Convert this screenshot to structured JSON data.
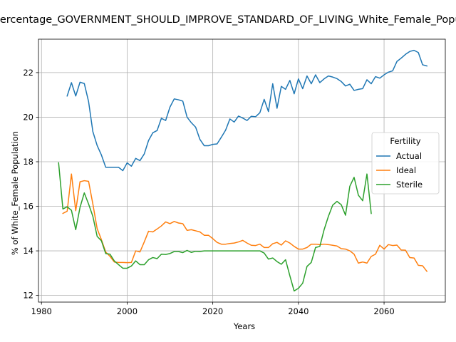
{
  "chart_data": {
    "type": "line",
    "title": "Percentage_GOVERNMENT_SHOULD_IMPROVE_STANDARD_OF_LIVING_White_Female_Population",
    "xlabel": "Years",
    "ylabel": "% of White_Female Population",
    "xlim": [
      1979.3,
      2074.3
    ],
    "ylim": [
      11.7,
      23.5
    ],
    "x_ticks": [
      1980,
      2000,
      2020,
      2040,
      2060
    ],
    "y_ticks": [
      12,
      14,
      16,
      18,
      20,
      22
    ],
    "x_tick_labels": [
      "1980",
      "2000",
      "2020",
      "2040",
      "2060"
    ],
    "y_tick_labels": [
      "12",
      "14",
      "16",
      "18",
      "20",
      "22"
    ],
    "grid": true,
    "legend": {
      "title": "Fertility",
      "placement": "center-right"
    },
    "series": [
      {
        "name": "Actual",
        "color": "#1f77b4",
        "points": [
          [
            1986,
            20.95
          ],
          [
            1987,
            21.55
          ],
          [
            1988,
            20.95
          ],
          [
            1989,
            21.57
          ],
          [
            1990,
            21.51
          ],
          [
            1991,
            20.7
          ],
          [
            1992,
            19.35
          ],
          [
            1993,
            18.73
          ],
          [
            1994,
            18.3
          ],
          [
            1995,
            17.75
          ],
          [
            1996,
            17.75
          ],
          [
            1997,
            17.75
          ],
          [
            1998,
            17.75
          ],
          [
            1999,
            17.6
          ],
          [
            2000,
            17.95
          ],
          [
            2001,
            17.8
          ],
          [
            2002,
            18.15
          ],
          [
            2003,
            18.05
          ],
          [
            2004,
            18.35
          ],
          [
            2005,
            18.95
          ],
          [
            2006,
            19.3
          ],
          [
            2007,
            19.4
          ],
          [
            2008,
            19.95
          ],
          [
            2009,
            19.85
          ],
          [
            2010,
            20.45
          ],
          [
            2011,
            20.82
          ],
          [
            2012,
            20.78
          ],
          [
            2013,
            20.72
          ],
          [
            2014,
            20.0
          ],
          [
            2015,
            19.75
          ],
          [
            2016,
            19.55
          ],
          [
            2017,
            19.0
          ],
          [
            2018,
            18.72
          ],
          [
            2019,
            18.72
          ],
          [
            2020,
            18.78
          ],
          [
            2021,
            18.8
          ],
          [
            2022,
            19.1
          ],
          [
            2023,
            19.42
          ],
          [
            2024,
            19.92
          ],
          [
            2025,
            19.78
          ],
          [
            2026,
            20.05
          ],
          [
            2027,
            19.96
          ],
          [
            2028,
            19.85
          ],
          [
            2029,
            20.04
          ],
          [
            2030,
            20.02
          ],
          [
            2031,
            20.2
          ],
          [
            2032,
            20.8
          ],
          [
            2033,
            20.25
          ],
          [
            2034,
            21.5
          ],
          [
            2035,
            20.4
          ],
          [
            2036,
            21.38
          ],
          [
            2037,
            21.25
          ],
          [
            2038,
            21.65
          ],
          [
            2039,
            21.05
          ],
          [
            2040,
            21.72
          ],
          [
            2041,
            21.28
          ],
          [
            2042,
            21.85
          ],
          [
            2043,
            21.5
          ],
          [
            2044,
            21.9
          ],
          [
            2045,
            21.55
          ],
          [
            2046,
            21.72
          ],
          [
            2047,
            21.85
          ],
          [
            2048,
            21.8
          ],
          [
            2049,
            21.73
          ],
          [
            2050,
            21.6
          ],
          [
            2051,
            21.4
          ],
          [
            2052,
            21.48
          ],
          [
            2053,
            21.2
          ],
          [
            2054,
            21.25
          ],
          [
            2055,
            21.28
          ],
          [
            2056,
            21.68
          ],
          [
            2057,
            21.5
          ],
          [
            2058,
            21.82
          ],
          [
            2059,
            21.75
          ],
          [
            2060,
            21.9
          ],
          [
            2061,
            22.02
          ],
          [
            2062,
            22.08
          ],
          [
            2063,
            22.5
          ],
          [
            2064,
            22.65
          ],
          [
            2065,
            22.82
          ],
          [
            2066,
            22.95
          ],
          [
            2067,
            23.0
          ],
          [
            2068,
            22.9
          ],
          [
            2069,
            22.35
          ],
          [
            2070,
            22.3
          ]
        ]
      },
      {
        "name": "Ideal",
        "color": "#ff7f0e",
        "points": [
          [
            1985,
            15.68
          ],
          [
            1986,
            15.78
          ],
          [
            1987,
            17.45
          ],
          [
            1988,
            15.8
          ],
          [
            1989,
            17.1
          ],
          [
            1990,
            17.15
          ],
          [
            1991,
            17.12
          ],
          [
            1992,
            16.1
          ],
          [
            1993,
            15.0
          ],
          [
            1994,
            14.5
          ],
          [
            1995,
            13.95
          ],
          [
            1996,
            13.75
          ],
          [
            1997,
            13.5
          ],
          [
            1998,
            13.48
          ],
          [
            1999,
            13.48
          ],
          [
            2000,
            13.47
          ],
          [
            2001,
            13.48
          ],
          [
            2002,
            14.0
          ],
          [
            2003,
            13.95
          ],
          [
            2004,
            14.4
          ],
          [
            2005,
            14.88
          ],
          [
            2006,
            14.85
          ],
          [
            2007,
            14.98
          ],
          [
            2008,
            15.12
          ],
          [
            2009,
            15.3
          ],
          [
            2010,
            15.22
          ],
          [
            2011,
            15.32
          ],
          [
            2012,
            15.25
          ],
          [
            2013,
            15.22
          ],
          [
            2014,
            14.92
          ],
          [
            2015,
            14.95
          ],
          [
            2016,
            14.9
          ],
          [
            2017,
            14.85
          ],
          [
            2018,
            14.7
          ],
          [
            2019,
            14.7
          ],
          [
            2020,
            14.55
          ],
          [
            2021,
            14.38
          ],
          [
            2022,
            14.3
          ],
          [
            2023,
            14.3
          ],
          [
            2024,
            14.33
          ],
          [
            2025,
            14.35
          ],
          [
            2026,
            14.4
          ],
          [
            2027,
            14.47
          ],
          [
            2028,
            14.35
          ],
          [
            2029,
            14.25
          ],
          [
            2030,
            14.24
          ],
          [
            2031,
            14.3
          ],
          [
            2032,
            14.15
          ],
          [
            2033,
            14.15
          ],
          [
            2034,
            14.32
          ],
          [
            2035,
            14.38
          ],
          [
            2036,
            14.26
          ],
          [
            2037,
            14.45
          ],
          [
            2038,
            14.35
          ],
          [
            2039,
            14.2
          ],
          [
            2040,
            14.08
          ],
          [
            2041,
            14.08
          ],
          [
            2042,
            14.15
          ],
          [
            2043,
            14.3
          ],
          [
            2044,
            14.3
          ],
          [
            2045,
            14.28
          ],
          [
            2046,
            14.3
          ],
          [
            2047,
            14.28
          ],
          [
            2048,
            14.25
          ],
          [
            2049,
            14.22
          ],
          [
            2050,
            14.1
          ],
          [
            2051,
            14.08
          ],
          [
            2052,
            14.0
          ],
          [
            2053,
            13.85
          ],
          [
            2054,
            13.45
          ],
          [
            2055,
            13.5
          ],
          [
            2056,
            13.45
          ],
          [
            2057,
            13.75
          ],
          [
            2058,
            13.85
          ],
          [
            2059,
            14.25
          ],
          [
            2060,
            14.08
          ],
          [
            2061,
            14.28
          ],
          [
            2062,
            14.24
          ],
          [
            2063,
            14.26
          ],
          [
            2064,
            14.04
          ],
          [
            2065,
            14.03
          ],
          [
            2066,
            13.7
          ],
          [
            2067,
            13.68
          ],
          [
            2068,
            13.35
          ],
          [
            2069,
            13.33
          ],
          [
            2070,
            13.08
          ]
        ]
      },
      {
        "name": "Sterile",
        "color": "#2ca02c",
        "points": [
          [
            1984,
            17.95
          ],
          [
            1985,
            15.88
          ],
          [
            1986,
            15.98
          ],
          [
            1987,
            15.82
          ],
          [
            1988,
            14.95
          ],
          [
            1989,
            15.95
          ],
          [
            1990,
            16.6
          ],
          [
            1991,
            16.1
          ],
          [
            1992,
            15.55
          ],
          [
            1993,
            14.65
          ],
          [
            1994,
            14.45
          ],
          [
            1995,
            13.88
          ],
          [
            1996,
            13.85
          ],
          [
            1997,
            13.55
          ],
          [
            1998,
            13.38
          ],
          [
            1999,
            13.22
          ],
          [
            2000,
            13.22
          ],
          [
            2001,
            13.32
          ],
          [
            2002,
            13.55
          ],
          [
            2003,
            13.38
          ],
          [
            2004,
            13.38
          ],
          [
            2005,
            13.6
          ],
          [
            2006,
            13.7
          ],
          [
            2007,
            13.65
          ],
          [
            2008,
            13.85
          ],
          [
            2009,
            13.84
          ],
          [
            2010,
            13.88
          ],
          [
            2011,
            13.97
          ],
          [
            2012,
            13.97
          ],
          [
            2013,
            13.92
          ],
          [
            2014,
            14.02
          ],
          [
            2015,
            13.93
          ],
          [
            2016,
            13.98
          ],
          [
            2017,
            13.97
          ],
          [
            2018,
            14.0
          ],
          [
            2019,
            14.0
          ],
          [
            2020,
            14.0
          ],
          [
            2021,
            14.0
          ],
          [
            2022,
            14.0
          ],
          [
            2023,
            14.0
          ],
          [
            2024,
            14.0
          ],
          [
            2025,
            14.0
          ],
          [
            2026,
            14.0
          ],
          [
            2027,
            14.0
          ],
          [
            2028,
            14.0
          ],
          [
            2029,
            14.0
          ],
          [
            2030,
            14.0
          ],
          [
            2031,
            14.0
          ],
          [
            2032,
            13.9
          ],
          [
            2033,
            13.63
          ],
          [
            2034,
            13.68
          ],
          [
            2035,
            13.52
          ],
          [
            2036,
            13.4
          ],
          [
            2037,
            13.6
          ],
          [
            2038,
            12.88
          ],
          [
            2039,
            12.2
          ],
          [
            2040,
            12.32
          ],
          [
            2041,
            12.55
          ],
          [
            2042,
            13.3
          ],
          [
            2043,
            13.48
          ],
          [
            2044,
            14.15
          ],
          [
            2045,
            14.2
          ],
          [
            2046,
            14.95
          ],
          [
            2047,
            15.55
          ],
          [
            2048,
            16.05
          ],
          [
            2049,
            16.22
          ],
          [
            2050,
            16.07
          ],
          [
            2051,
            15.6
          ],
          [
            2052,
            16.9
          ],
          [
            2053,
            17.3
          ],
          [
            2054,
            16.5
          ],
          [
            2055,
            16.25
          ],
          [
            2056,
            17.45
          ],
          [
            2057,
            15.68
          ]
        ]
      }
    ]
  }
}
